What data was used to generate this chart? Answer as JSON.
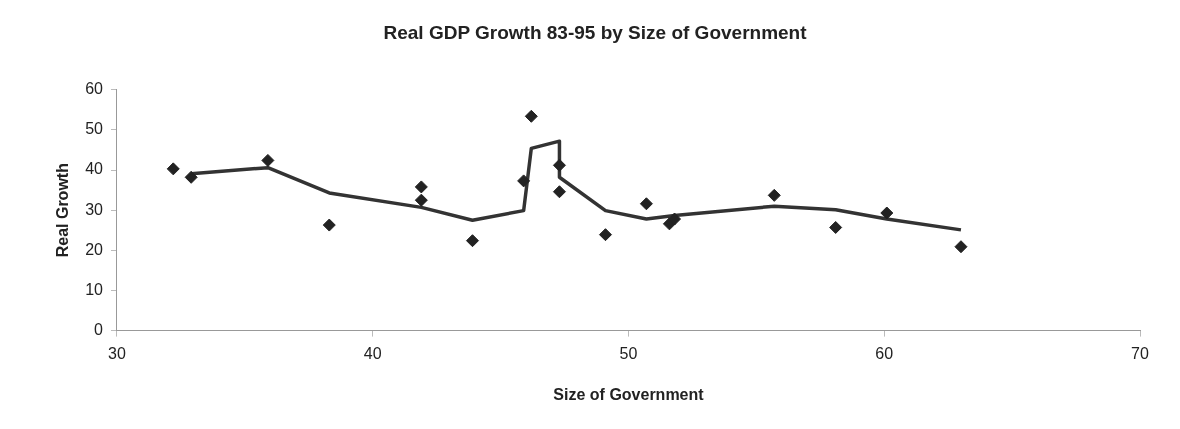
{
  "chart_data": {
    "type": "scatter",
    "title": "Real GDP Growth 83-95 by Size of Government",
    "xlabel": "Size of Government",
    "ylabel": "Real Growth",
    "xlim": [
      30,
      70
    ],
    "xticks": [
      30,
      40,
      50,
      60,
      70
    ],
    "ylim": [
      0,
      60
    ],
    "yticks": [
      0,
      10,
      20,
      30,
      40,
      50,
      60
    ],
    "grid": false,
    "legend": false,
    "marker": "diamond",
    "series": [
      {
        "type": "scatter",
        "color": "#222222",
        "x": [
          32.2,
          32.9,
          35.9,
          38.3,
          41.9,
          41.9,
          43.9,
          45.9,
          46.2,
          47.3,
          47.3,
          49.1,
          50.7,
          51.6,
          51.8,
          55.7,
          58.1,
          60.1,
          63.0
        ],
        "values": [
          40.3,
          38.2,
          42.4,
          26.3,
          35.8,
          32.5,
          22.4,
          37.3,
          53.4,
          41.2,
          34.6,
          23.9,
          31.6,
          26.6,
          27.8,
          33.7,
          25.7,
          29.3,
          20.9
        ]
      },
      {
        "type": "line",
        "color": "#333333",
        "marker": "none",
        "line_style": "solid",
        "x": [
          32.9,
          35.9,
          38.3,
          41.9,
          43.9,
          45.9,
          46.2,
          47.3,
          47.3,
          49.1,
          50.7,
          51.8,
          55.7,
          58.1,
          60.1,
          63.0
        ],
        "values": [
          39.1,
          40.6,
          34.3,
          30.7,
          27.5,
          29.9,
          45.4,
          47.2,
          38.2,
          29.9,
          27.8,
          28.7,
          31.0,
          30.1,
          27.8,
          25.1
        ]
      }
    ]
  }
}
